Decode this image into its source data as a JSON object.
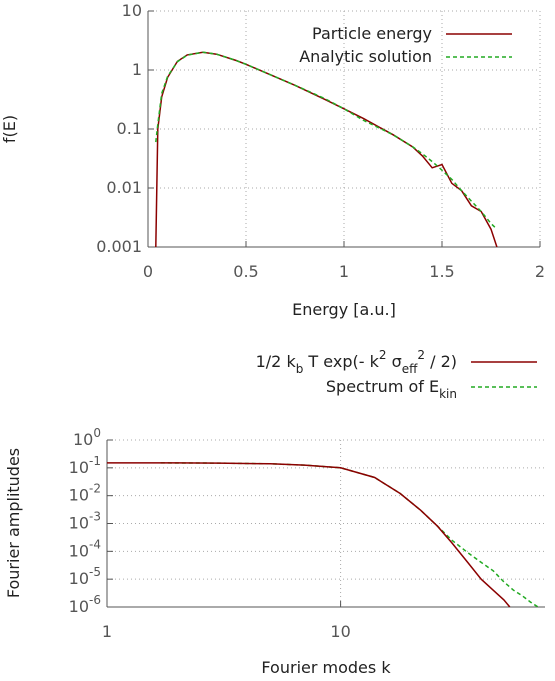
{
  "chart_data": [
    {
      "type": "line",
      "xlabel": "Energy [a.u.]",
      "ylabel": "f(E)",
      "log_y": true,
      "grid": true,
      "legend": "top right",
      "xlim": [
        0,
        2
      ],
      "xticks": [
        0,
        0.5,
        1,
        1.5,
        2
      ],
      "ylim": [
        0.001,
        10
      ],
      "yticks": [
        0.001,
        0.01,
        0.1,
        1,
        10
      ],
      "x": [
        0.04,
        0.05,
        0.07,
        0.1,
        0.15,
        0.2,
        0.28,
        0.35,
        0.45,
        0.5,
        0.6,
        0.75,
        0.9,
        1.0,
        1.1,
        1.25,
        1.35,
        1.4,
        1.45,
        1.5,
        1.55,
        1.6,
        1.65,
        1.7,
        1.75,
        1.78
      ],
      "series": [
        {
          "name": "Particle energy",
          "color": "#8b0000",
          "dashed": false,
          "values": [
            0.001,
            0.1,
            0.35,
            0.75,
            1.4,
            1.8,
            2.0,
            1.85,
            1.45,
            1.25,
            0.9,
            0.55,
            0.32,
            0.22,
            0.15,
            0.08,
            0.05,
            0.035,
            0.022,
            0.025,
            0.012,
            0.009,
            0.005,
            0.004,
            0.002,
            0.001
          ]
        },
        {
          "name": "Analytic solution",
          "color": "#22aa22",
          "dashed": true,
          "values": [
            0.06,
            0.12,
            0.4,
            0.78,
            1.38,
            1.78,
            2.0,
            1.85,
            1.45,
            1.25,
            0.9,
            0.55,
            0.33,
            0.22,
            0.14,
            0.08,
            0.05,
            0.038,
            0.028,
            0.02,
            0.014,
            0.009,
            0.006,
            0.004,
            0.0025,
            0.002
          ]
        }
      ]
    },
    {
      "type": "line",
      "xlabel": "Fourier modes k",
      "ylabel": "Fourier amplitudes",
      "log_x": true,
      "log_y": true,
      "grid": true,
      "legend": "above",
      "xlim": [
        1,
        75
      ],
      "xticks": [
        1,
        10
      ],
      "ylim": [
        1e-06,
        1
      ],
      "yticks": [
        {
          "value": 1,
          "label": "10^{0}"
        },
        {
          "value": 0.1,
          "label": "10^{-1}"
        },
        {
          "value": 0.01,
          "label": "10^{-2}"
        },
        {
          "value": 0.001,
          "label": "10^{-3}"
        },
        {
          "value": 0.0001,
          "label": "10^{-4}"
        },
        {
          "value": 1e-05,
          "label": "10^{-5}"
        },
        {
          "value": 1e-06,
          "label": "10^{-6}"
        }
      ],
      "series": [
        {
          "name": "Spectrum of  E_{kin}",
          "color": "#22aa22",
          "dashed": true,
          "x": [
            1.7,
            3,
            5,
            7,
            10,
            14,
            18,
            22,
            26,
            30,
            35,
            40,
            45,
            50,
            55,
            60,
            65,
            70
          ],
          "values": [
            0.15,
            0.148,
            0.14,
            0.125,
            0.1,
            0.045,
            0.012,
            0.003,
            0.0008,
            0.00025,
            9e-05,
            4e-05,
            2e-05,
            8e-06,
            4e-06,
            2.5e-06,
            1.5e-06,
            1e-06
          ]
        },
        {
          "name": "1/2 k_{b} T exp(- k^{2} σ_{eff}^{2} / 2)",
          "color": "#8b0000",
          "dashed": false,
          "x": [
            1,
            2,
            3,
            5,
            7,
            10,
            14,
            18,
            22,
            26,
            30,
            35,
            40,
            45,
            50,
            53
          ],
          "values": [
            0.15,
            0.15,
            0.148,
            0.14,
            0.125,
            0.1,
            0.045,
            0.012,
            0.003,
            0.0008,
            0.0002,
            4e-05,
            1e-05,
            4e-06,
            1.8e-06,
            1e-06
          ]
        }
      ]
    }
  ]
}
